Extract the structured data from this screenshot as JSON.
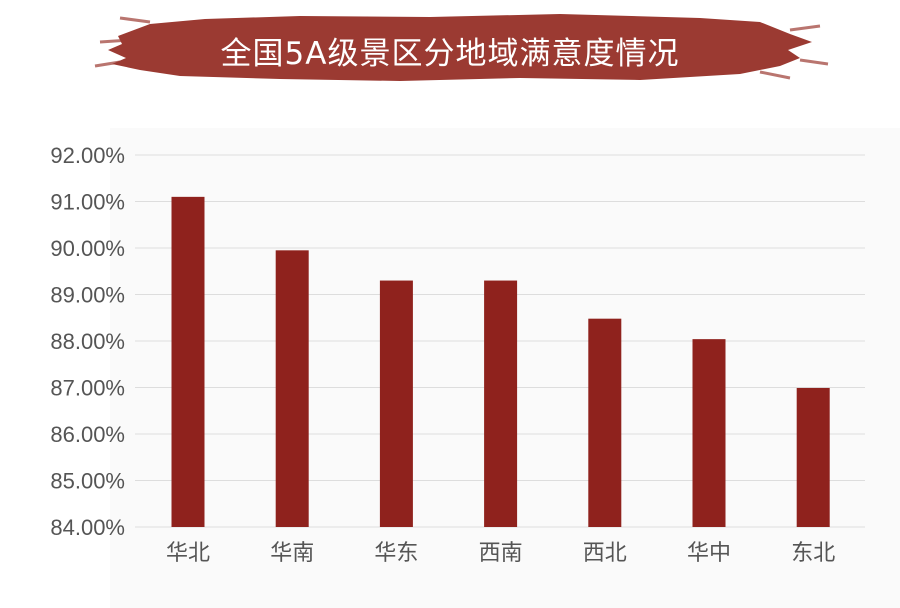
{
  "colors": {
    "banner": "#9b3a32",
    "bar": "#8f221d",
    "grid": "#dddddd",
    "axis_text": "#555555"
  },
  "chart_data": {
    "type": "bar",
    "title": "全国5A级景区分地域满意度情况",
    "categories": [
      "华北",
      "华南",
      "华东",
      "西南",
      "西北",
      "华中",
      "东北"
    ],
    "values": [
      91.1,
      89.95,
      89.3,
      89.3,
      88.48,
      88.04,
      86.99
    ],
    "ylim": [
      84,
      92
    ],
    "ytick_labels": [
      "84.00%",
      "85.00%",
      "86.00%",
      "87.00%",
      "88.00%",
      "89.00%",
      "90.00%",
      "91.00%",
      "92.00%"
    ],
    "grid": true
  }
}
